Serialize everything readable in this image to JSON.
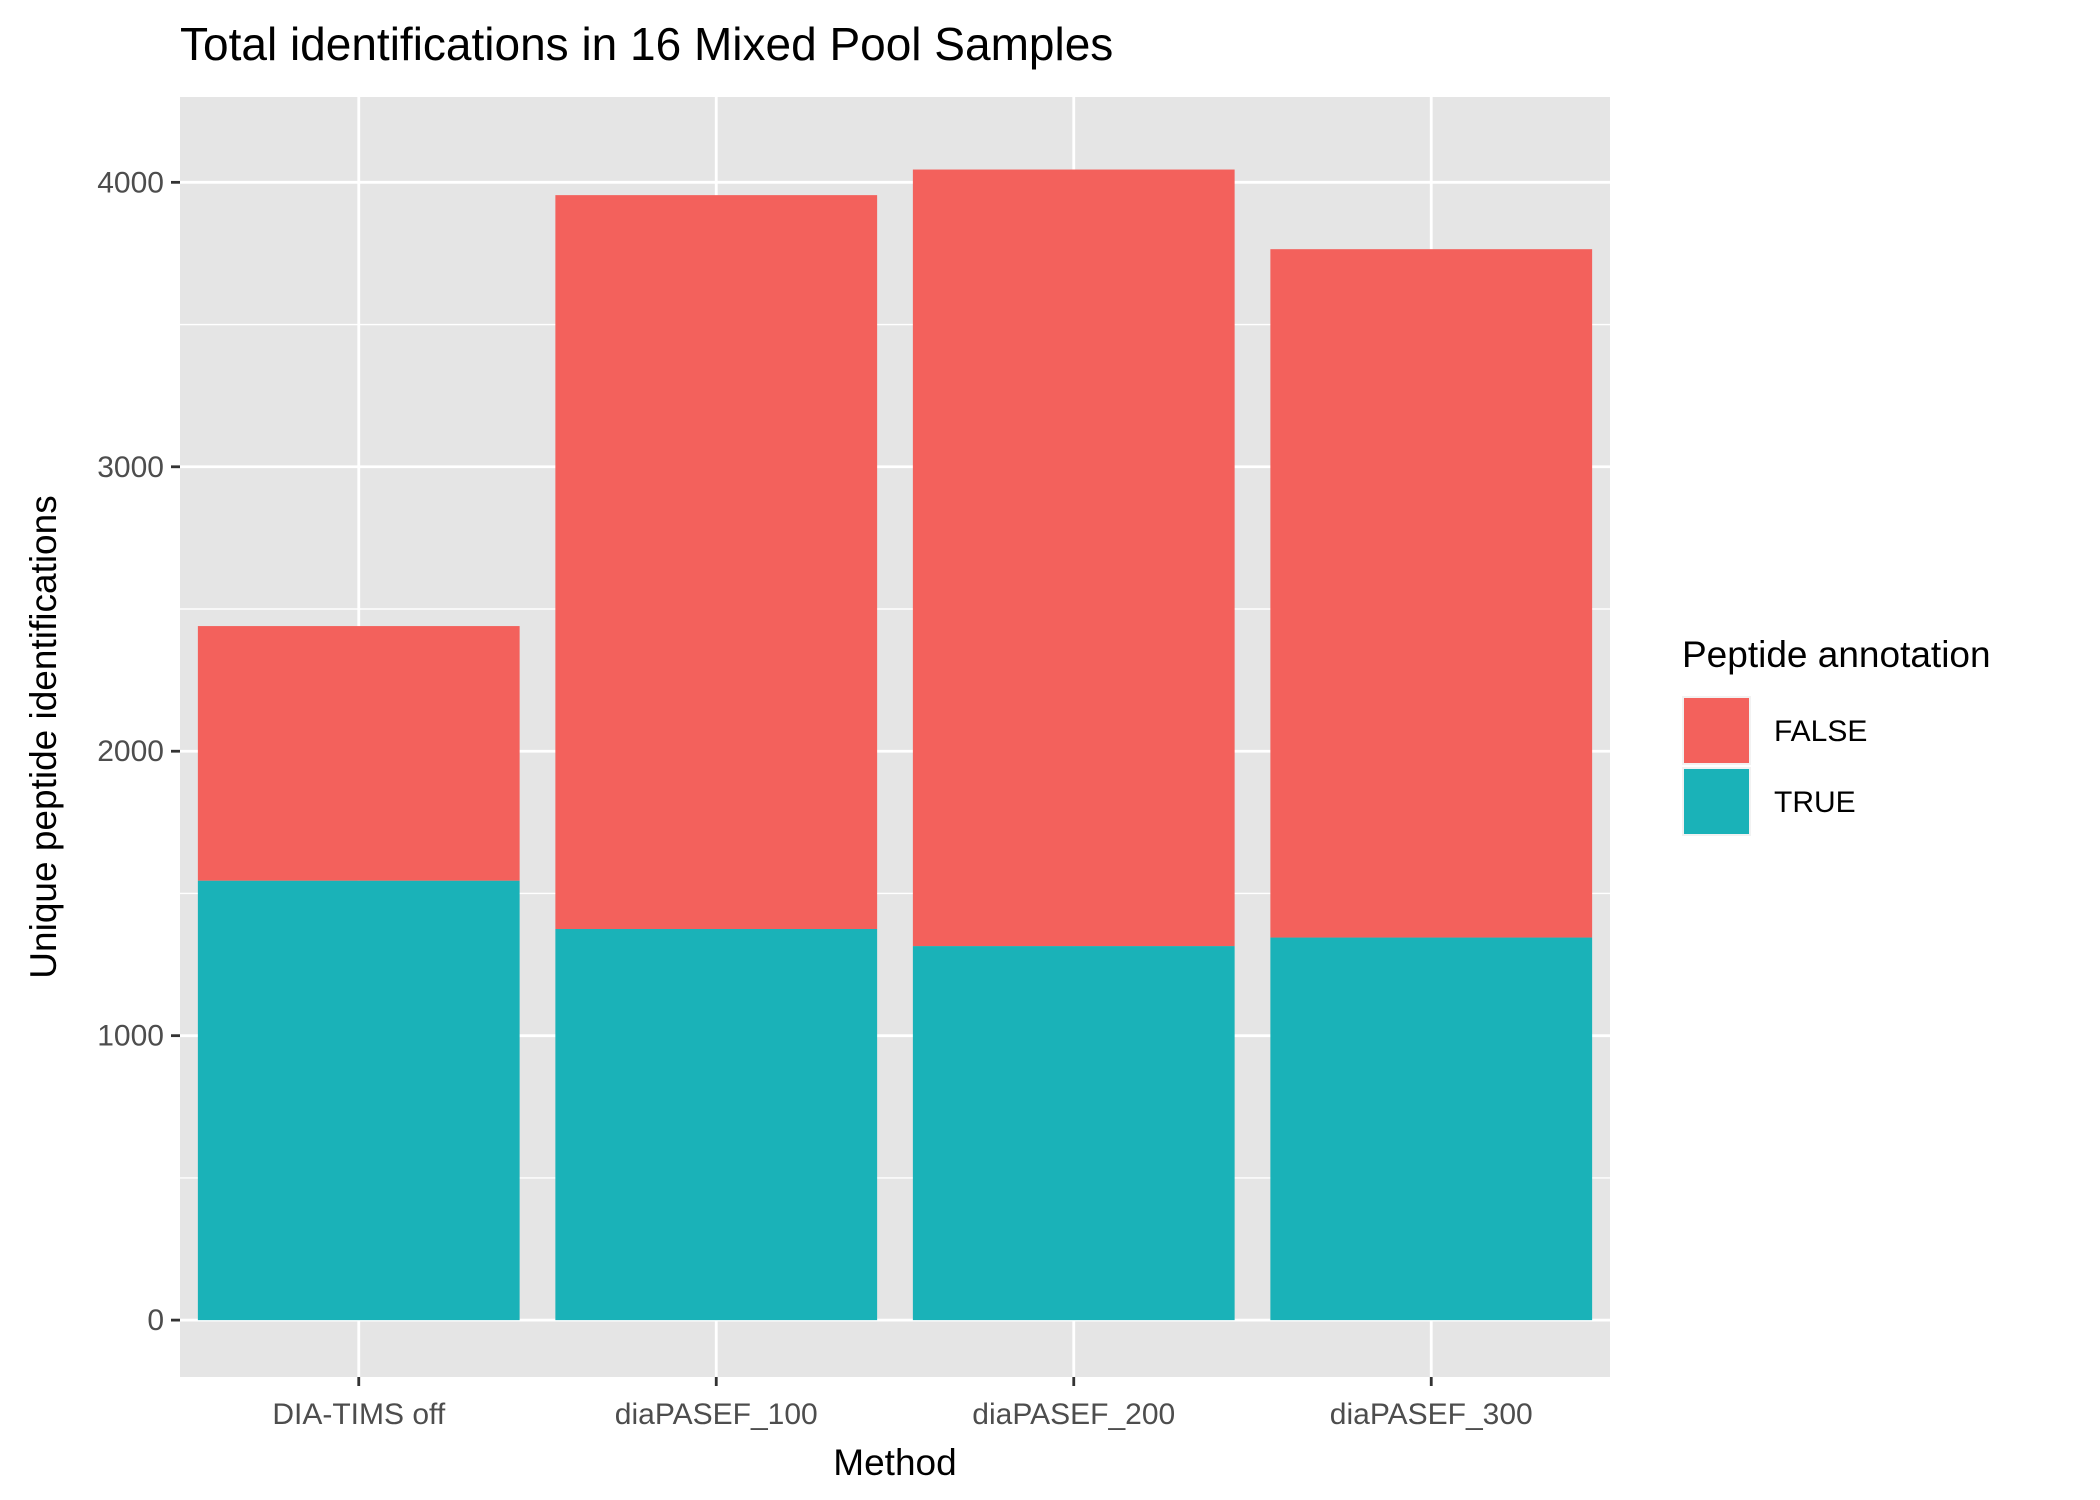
{
  "chart_data": {
    "type": "bar",
    "stacked": true,
    "title": "Total identifications in 16 Mixed Pool Samples",
    "xlabel": "Method",
    "ylabel": "Unique peptide identifications",
    "categories": [
      "DIA-TIMS off",
      "diaPASEF_100",
      "diaPASEF_200",
      "diaPASEF_300"
    ],
    "series": [
      {
        "name": "TRUE",
        "color": "#1AB2B8",
        "values": [
          1545,
          1375,
          1315,
          1345
        ]
      },
      {
        "name": "FALSE",
        "color": "#F3615C",
        "values": [
          895,
          2580,
          2730,
          2420
        ]
      }
    ],
    "ylim": [
      -200,
      4300
    ],
    "yticks": [
      0,
      1000,
      2000,
      3000,
      4000
    ],
    "grid": true,
    "legend": {
      "title": "Peptide annotation",
      "position": "right",
      "items": [
        {
          "label": "FALSE",
          "color": "#F3615C"
        },
        {
          "label": "TRUE",
          "color": "#1AB2B8"
        }
      ]
    },
    "panel_background": "#E5E5E5",
    "grid_color": "#FFFFFF"
  }
}
